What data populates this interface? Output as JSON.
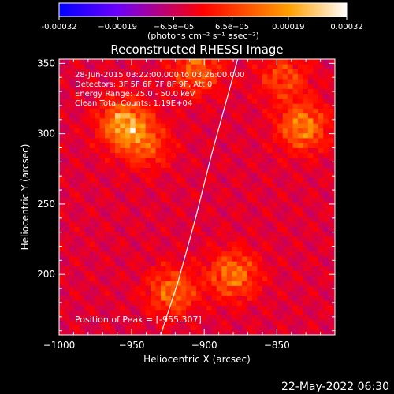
{
  "chart_data": {
    "type": "heatmap",
    "title": "Reconstructed RHESSI Image",
    "xlabel": "Heliocentric X (arcsec)",
    "ylabel": "Heliocentric Y (arcsec)",
    "xlim": [
      -1000,
      -810
    ],
    "ylim": [
      157,
      353
    ],
    "x_ticks": [
      -1000,
      -950,
      -900,
      -850
    ],
    "x_tick_labels": [
      "−1000",
      "−950",
      "−900",
      "−850"
    ],
    "y_ticks": [
      200,
      250,
      300,
      350
    ],
    "y_tick_labels": [
      "200",
      "250",
      "300",
      "350"
    ],
    "colorbar": {
      "range": [
        -0.00032,
        0.00032
      ],
      "ticks": [
        -0.00032,
        -0.00019,
        -6.5e-05,
        6.5e-05,
        0.00019,
        0.00032
      ],
      "tick_labels": [
        "-0.00032",
        "−0.00019",
        "−6.5e−05",
        "6.5e−05",
        "0.00019",
        "0.00032"
      ],
      "units_label": "(photons cm⁻² s⁻¹ asec⁻²)",
      "colors": [
        "#0000ff",
        "#6a00ff",
        "#ff0000",
        "#ffa000",
        "#ffffff"
      ]
    },
    "info_lines": [
      "28-Jun-2015 03:22:00.000 to 03:26:00.000",
      "Detectors: 3F 5F 6F 7F 8F 9F, Att 0",
      "Energy Range: 25.0 - 50.0 keV",
      "Clean     Total Counts: 1.19E+04"
    ],
    "peak_label": "Position of Peak = [-955,307]",
    "peak": [
      -955,
      307
    ],
    "bright_sources": [
      {
        "x": -955,
        "y": 307,
        "value": 0.00032
      },
      {
        "x": -832,
        "y": 305,
        "value": 0.00026
      },
      {
        "x": -880,
        "y": 200,
        "value": 0.00024
      },
      {
        "x": -922,
        "y": 188,
        "value": 0.00022
      },
      {
        "x": -905,
        "y": 345,
        "value": 0.0002
      },
      {
        "x": -845,
        "y": 340,
        "value": 0.00016
      },
      {
        "x": -940,
        "y": 292,
        "value": 0.00016
      }
    ],
    "limb": [
      [
        -930,
        157
      ],
      [
        -918,
        195
      ],
      [
        -906,
        240
      ],
      [
        -895,
        285
      ],
      [
        -883,
        330
      ],
      [
        -877,
        353
      ]
    ],
    "grid": false
  },
  "timestamp": "22-May-2022 06:30"
}
